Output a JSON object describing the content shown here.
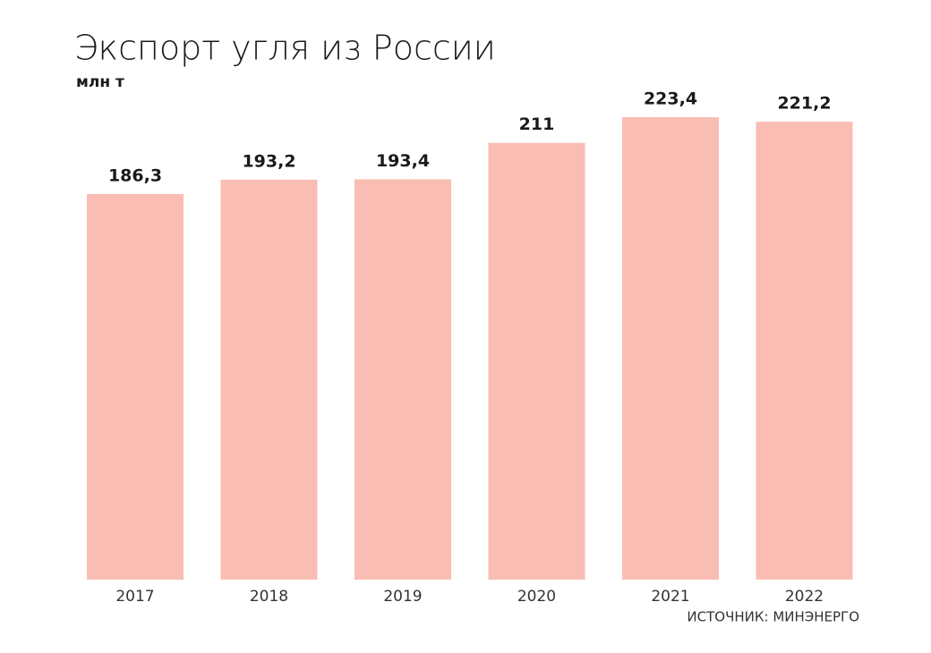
{
  "chart_data": {
    "type": "bar",
    "title": "Экспорт угля из России",
    "subtitle": "млн т",
    "categories": [
      "2017",
      "2018",
      "2019",
      "2020",
      "2021",
      "2022"
    ],
    "values": [
      186.3,
      193.2,
      193.4,
      211,
      223.4,
      221.2
    ],
    "value_labels": [
      "186,3",
      "193,2",
      "193,4",
      "211",
      "223,4",
      "221,2"
    ],
    "color": "#f9bdb3",
    "annotation": "ИСТОЧНИК: МИНЭНЕРГО"
  }
}
